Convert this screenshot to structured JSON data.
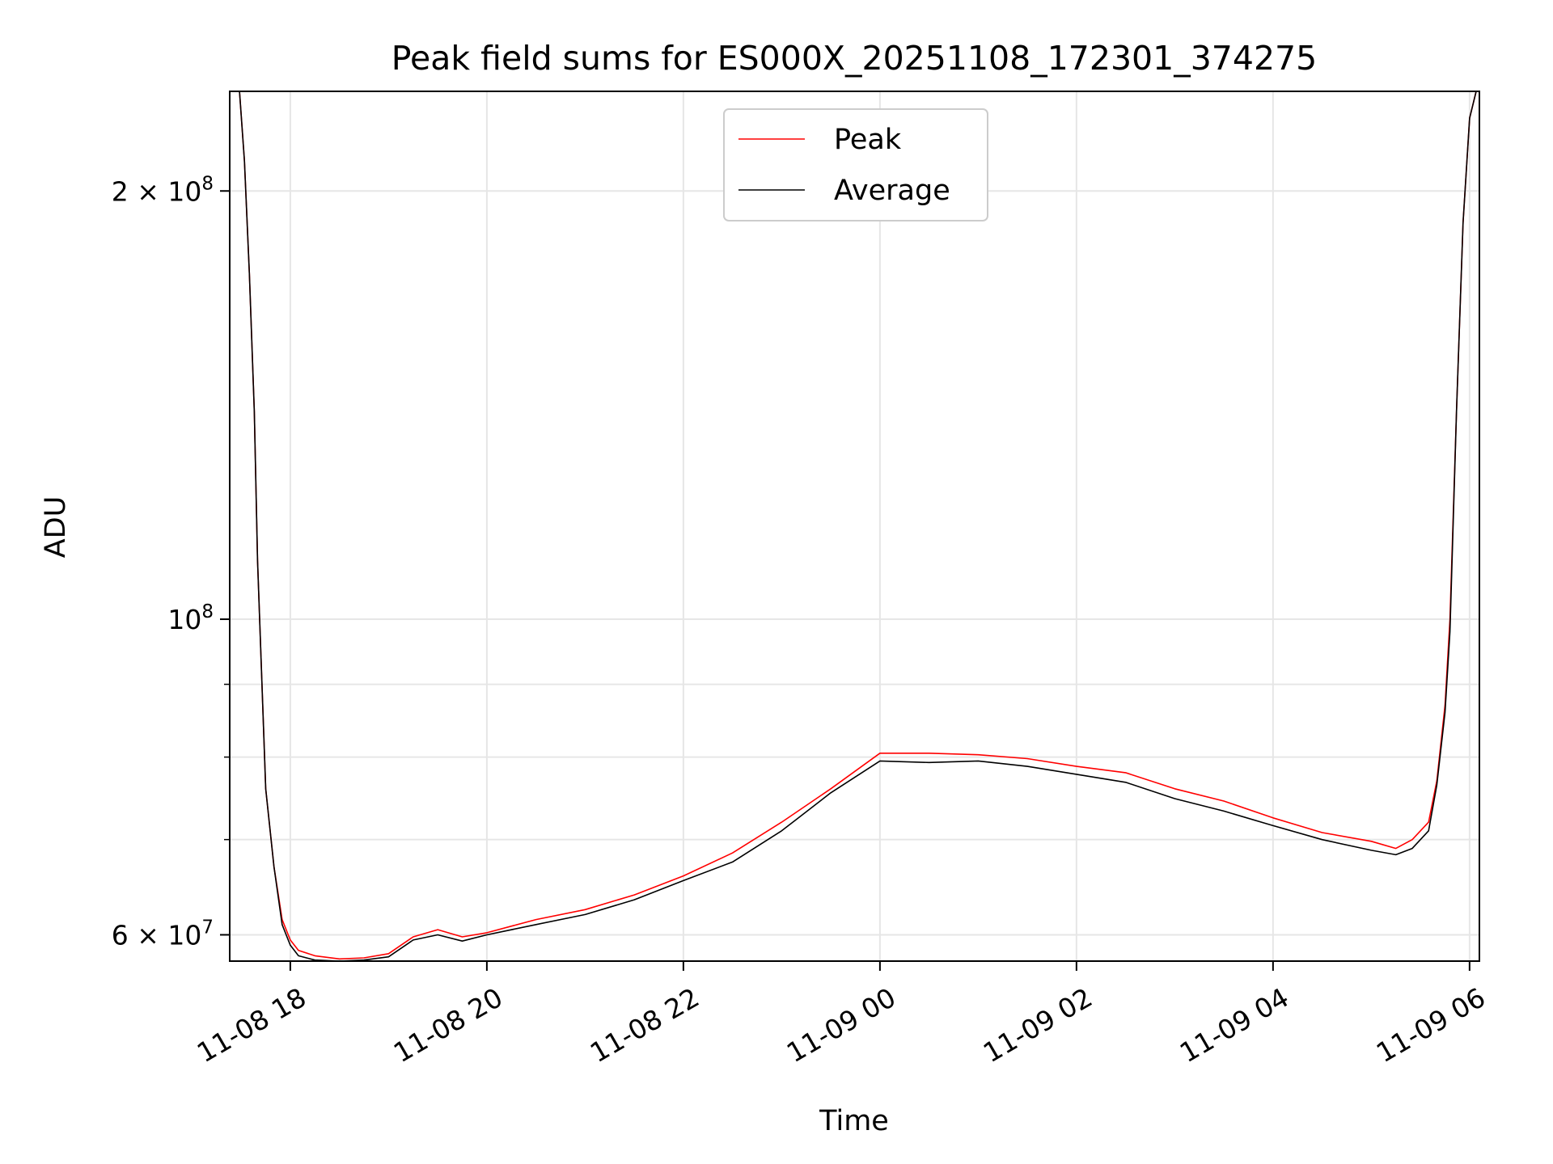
{
  "chart_data": {
    "type": "line",
    "title": "Peak field sums for ES000X_20251108_172301_374275",
    "xlabel": "Time",
    "ylabel": "ADU",
    "y_scale": "log",
    "grid": true,
    "legend_position": "top-center",
    "xlim": [
      "2025-11-08T17:23",
      "2025-11-09T06:06"
    ],
    "ylim": [
      57500000,
      235000000
    ],
    "x_ticks": [
      {
        "value": "2025-11-08T18:00",
        "label": "11-08 18"
      },
      {
        "value": "2025-11-08T20:00",
        "label": "11-08 20"
      },
      {
        "value": "2025-11-08T22:00",
        "label": "11-08 22"
      },
      {
        "value": "2025-11-09T00:00",
        "label": "11-09 00"
      },
      {
        "value": "2025-11-09T02:00",
        "label": "11-09 02"
      },
      {
        "value": "2025-11-09T04:00",
        "label": "11-09 04"
      },
      {
        "value": "2025-11-09T06:00",
        "label": "11-09 06"
      }
    ],
    "y_ticks_major": [
      {
        "value": 60000000,
        "label": "6 × 10^7",
        "mantissa": "6",
        "exponent": "7"
      },
      {
        "value": 100000000,
        "label": "10^8",
        "mantissa": "",
        "exponent": "8"
      },
      {
        "value": 200000000,
        "label": "2 × 10^8",
        "mantissa": "2",
        "exponent": "8"
      }
    ],
    "y_ticks_minor": [
      70000000,
      80000000,
      90000000
    ],
    "x": [
      "2025-11-08T17:29",
      "2025-11-08T17:32",
      "2025-11-08T17:35",
      "2025-11-08T17:38",
      "2025-11-08T17:40",
      "2025-11-08T17:45",
      "2025-11-08T17:50",
      "2025-11-08T17:55",
      "2025-11-08T18:00",
      "2025-11-08T18:05",
      "2025-11-08T18:15",
      "2025-11-08T18:30",
      "2025-11-08T18:45",
      "2025-11-08T19:00",
      "2025-11-08T19:15",
      "2025-11-08T19:30",
      "2025-11-08T19:45",
      "2025-11-08T20:00",
      "2025-11-08T20:30",
      "2025-11-08T21:00",
      "2025-11-08T21:30",
      "2025-11-08T22:00",
      "2025-11-08T22:30",
      "2025-11-08T23:00",
      "2025-11-08T23:30",
      "2025-11-09T00:00",
      "2025-11-09T00:30",
      "2025-11-09T01:00",
      "2025-11-09T01:30",
      "2025-11-09T02:00",
      "2025-11-09T02:30",
      "2025-11-09T03:00",
      "2025-11-09T03:30",
      "2025-11-09T04:00",
      "2025-11-09T04:30",
      "2025-11-09T05:00",
      "2025-11-09T05:15",
      "2025-11-09T05:25",
      "2025-11-09T05:35",
      "2025-11-09T05:40",
      "2025-11-09T05:45",
      "2025-11-09T05:48",
      "2025-11-09T05:52",
      "2025-11-09T05:56",
      "2025-11-09T06:00",
      "2025-11-09T06:04"
    ],
    "series": [
      {
        "name": "Peak",
        "color": "#ff0000",
        "values": [
          235000000,
          210000000,
          175000000,
          140000000,
          110000000,
          76000000,
          67000000,
          61500000,
          59500000,
          58500000,
          58000000,
          57700000,
          57800000,
          58200000,
          59800000,
          60500000,
          59800000,
          60200000,
          61500000,
          62500000,
          64000000,
          66000000,
          68500000,
          72000000,
          76000000,
          80500000,
          80500000,
          80300000,
          79800000,
          78800000,
          78000000,
          76000000,
          74500000,
          72500000,
          70800000,
          69800000,
          69000000,
          70000000,
          72000000,
          77000000,
          87000000,
          100000000,
          140000000,
          190000000,
          225000000,
          235000000
        ]
      },
      {
        "name": "Average",
        "color": "#000000",
        "values": [
          235000000,
          210000000,
          175000000,
          140000000,
          110000000,
          76000000,
          67000000,
          61000000,
          59000000,
          58000000,
          57600000,
          57500000,
          57600000,
          57900000,
          59500000,
          60000000,
          59400000,
          60000000,
          61000000,
          62000000,
          63500000,
          65500000,
          67500000,
          71000000,
          75500000,
          79500000,
          79300000,
          79500000,
          78800000,
          77800000,
          76800000,
          74800000,
          73300000,
          71600000,
          70000000,
          68800000,
          68300000,
          69000000,
          71000000,
          76500000,
          86000000,
          98000000,
          140000000,
          190000000,
          225000000,
          235000000
        ]
      }
    ]
  }
}
